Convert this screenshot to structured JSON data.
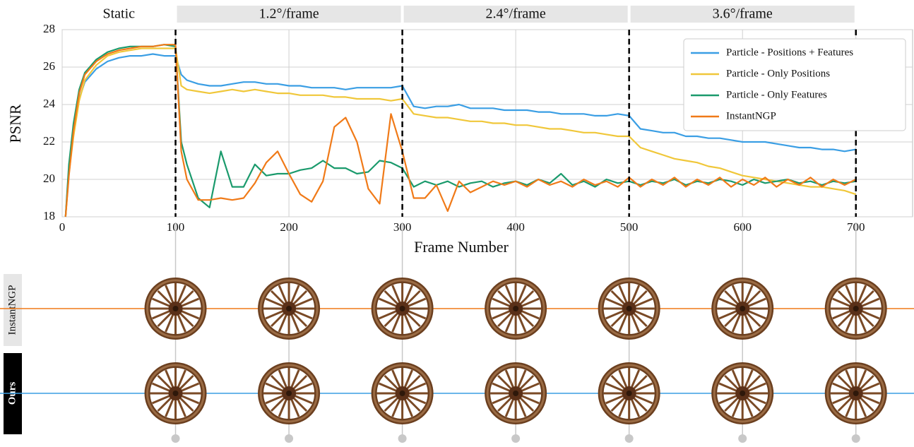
{
  "chart_data": {
    "type": "line",
    "phases": [
      "Static",
      "1.2°/frame",
      "2.4°/frame",
      "3.6°/frame"
    ],
    "boundaries": [
      100,
      300,
      500,
      700
    ],
    "x_label": "Frame Number",
    "y_label": "PSNR",
    "xlim": [
      0,
      750
    ],
    "ylim": [
      18,
      28
    ],
    "xticks": [
      0,
      100,
      200,
      300,
      400,
      500,
      600,
      700
    ],
    "yticks": [
      18,
      20,
      22,
      24,
      26,
      28
    ],
    "grid": true,
    "legend": "upper right",
    "x": [
      3,
      6,
      10,
      15,
      20,
      30,
      40,
      50,
      60,
      70,
      80,
      90,
      100,
      105,
      110,
      120,
      130,
      140,
      150,
      160,
      170,
      180,
      190,
      200,
      210,
      220,
      230,
      240,
      250,
      260,
      270,
      280,
      290,
      300,
      310,
      320,
      330,
      340,
      350,
      360,
      370,
      380,
      390,
      400,
      410,
      420,
      430,
      440,
      450,
      460,
      470,
      480,
      490,
      500,
      510,
      520,
      530,
      540,
      550,
      560,
      570,
      580,
      590,
      600,
      610,
      620,
      630,
      640,
      650,
      660,
      670,
      680,
      690,
      700
    ],
    "series": [
      {
        "name": "Particle - Positions + Features",
        "color": "#3a9ee4",
        "values": [
          18,
          20.5,
          22.5,
          24.3,
          25.2,
          25.9,
          26.3,
          26.5,
          26.6,
          26.6,
          26.7,
          26.6,
          26.6,
          25.6,
          25.3,
          25.1,
          25.0,
          25.0,
          25.1,
          25.2,
          25.2,
          25.1,
          25.1,
          25.0,
          25.0,
          24.9,
          24.9,
          24.9,
          24.8,
          24.9,
          24.9,
          24.9,
          24.9,
          25.0,
          23.9,
          23.8,
          23.9,
          23.9,
          24.0,
          23.8,
          23.8,
          23.8,
          23.7,
          23.7,
          23.7,
          23.6,
          23.6,
          23.5,
          23.5,
          23.5,
          23.4,
          23.4,
          23.5,
          23.4,
          22.7,
          22.6,
          22.5,
          22.5,
          22.3,
          22.3,
          22.2,
          22.2,
          22.1,
          22.0,
          22.0,
          22.0,
          21.9,
          21.8,
          21.7,
          21.7,
          21.6,
          21.6,
          21.5,
          21.6
        ]
      },
      {
        "name": "Particle - Only Positions",
        "color": "#f0c73a",
        "values": [
          18,
          20.3,
          22.3,
          24.2,
          25.3,
          26.1,
          26.6,
          26.8,
          26.9,
          27.0,
          27.0,
          27.0,
          27.0,
          25.0,
          24.8,
          24.7,
          24.6,
          24.7,
          24.8,
          24.7,
          24.8,
          24.7,
          24.6,
          24.6,
          24.5,
          24.5,
          24.5,
          24.4,
          24.4,
          24.3,
          24.3,
          24.3,
          24.2,
          24.3,
          23.5,
          23.4,
          23.3,
          23.3,
          23.2,
          23.1,
          23.1,
          23.0,
          23.0,
          22.9,
          22.9,
          22.8,
          22.7,
          22.7,
          22.6,
          22.5,
          22.5,
          22.4,
          22.3,
          22.3,
          21.7,
          21.5,
          21.3,
          21.1,
          21.0,
          20.9,
          20.7,
          20.6,
          20.4,
          20.2,
          20.1,
          20.0,
          19.9,
          19.8,
          19.7,
          19.6,
          19.6,
          19.5,
          19.4,
          19.2
        ]
      },
      {
        "name": "Particle - Only Features",
        "color": "#1a9a6c",
        "values": [
          18,
          20.8,
          23.0,
          24.8,
          25.7,
          26.4,
          26.8,
          27.0,
          27.1,
          27.1,
          27.1,
          27.2,
          27.1,
          22.0,
          20.8,
          19.0,
          18.5,
          21.5,
          19.6,
          19.6,
          20.8,
          20.2,
          20.3,
          20.3,
          20.5,
          20.6,
          21.0,
          20.6,
          20.6,
          20.3,
          20.4,
          21.0,
          20.9,
          20.6,
          19.6,
          19.9,
          19.7,
          19.9,
          19.6,
          19.8,
          19.9,
          19.6,
          19.8,
          19.9,
          19.7,
          20.0,
          19.8,
          20.3,
          19.7,
          19.9,
          19.6,
          20.0,
          19.8,
          19.9,
          19.7,
          19.9,
          19.8,
          20.0,
          19.7,
          19.9,
          19.8,
          20.0,
          19.9,
          19.7,
          20.0,
          19.8,
          19.9,
          20.0,
          19.8,
          19.9,
          19.7,
          19.9,
          19.8,
          19.9
        ]
      },
      {
        "name": "InstantNGP",
        "color": "#f07a18",
        "values": [
          18,
          20.2,
          22.6,
          24.6,
          25.6,
          26.3,
          26.7,
          26.9,
          27.0,
          27.1,
          27.1,
          27.2,
          27.2,
          21.5,
          20.0,
          18.9,
          18.9,
          19.0,
          18.9,
          19.0,
          19.8,
          20.9,
          21.5,
          20.3,
          19.2,
          18.8,
          19.9,
          22.8,
          23.3,
          22.0,
          19.5,
          18.7,
          23.5,
          21.5,
          19.0,
          19.0,
          19.7,
          18.3,
          19.9,
          19.3,
          19.6,
          19.9,
          19.7,
          19.9,
          19.6,
          20.0,
          19.7,
          19.9,
          19.6,
          20.0,
          19.7,
          19.9,
          19.6,
          20.1,
          19.6,
          20.0,
          19.7,
          20.1,
          19.6,
          20.0,
          19.7,
          20.1,
          19.6,
          20.0,
          19.7,
          20.1,
          19.6,
          20.0,
          19.7,
          20.1,
          19.6,
          20.0,
          19.7,
          20.0
        ]
      }
    ],
    "rows": [
      {
        "label": "InstantNGP",
        "series": 3
      },
      {
        "label": "Ours",
        "series": 0
      }
    ]
  }
}
